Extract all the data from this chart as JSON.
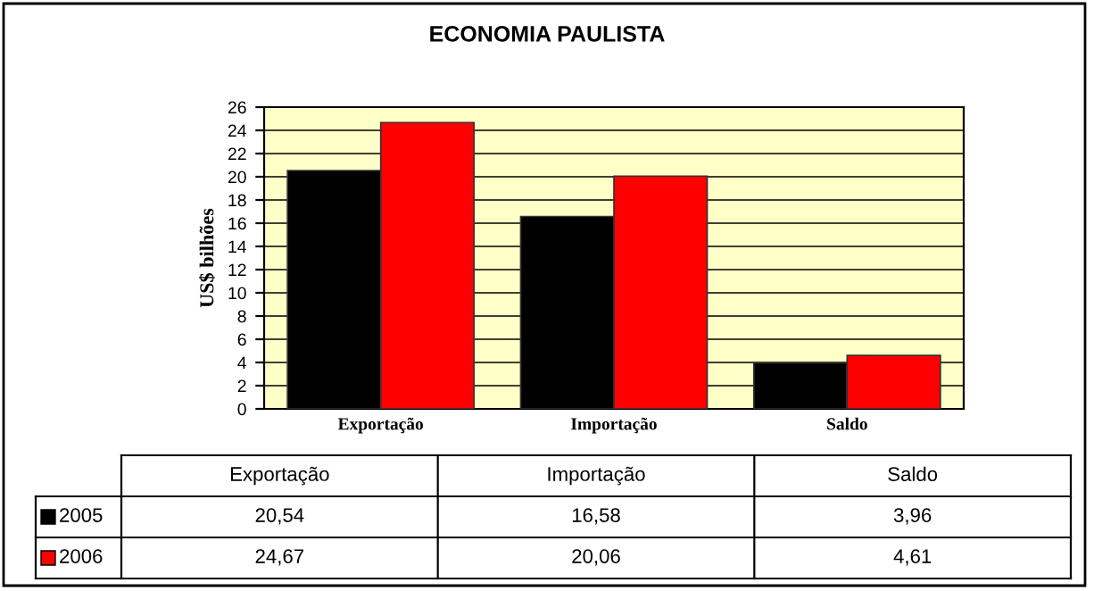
{
  "chart_data": {
    "type": "bar",
    "title": "ECONOMIA PAULISTA",
    "ylabel": "US$ bilhões",
    "categories": [
      "Exportação",
      "Importação",
      "Saldo"
    ],
    "series": [
      {
        "name": "2005",
        "color": "#000000",
        "values": [
          20.54,
          16.58,
          3.96
        ],
        "value_labels": [
          "20,54",
          "16,58",
          "3,96"
        ]
      },
      {
        "name": "2006",
        "color": "#ff0000",
        "values": [
          24.67,
          20.06,
          4.61
        ],
        "value_labels": [
          "24,67",
          "20,06",
          "4,61"
        ]
      }
    ],
    "ylim": [
      0,
      26
    ],
    "yticks": [
      0,
      2,
      4,
      6,
      8,
      10,
      12,
      14,
      16,
      18,
      20,
      22,
      24,
      26
    ],
    "grid": "y",
    "legend": "bottom"
  }
}
